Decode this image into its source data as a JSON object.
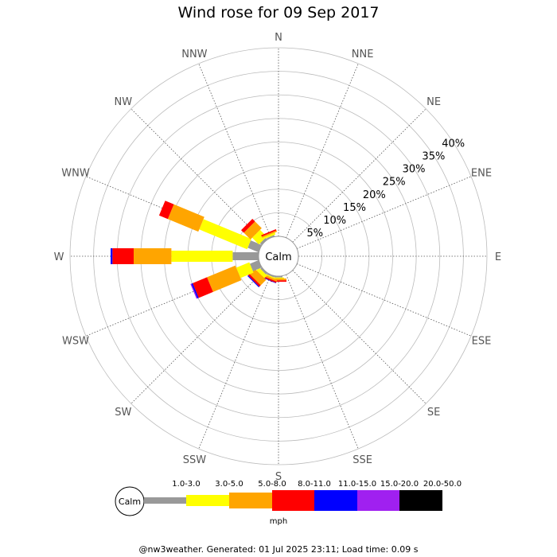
{
  "title": "Wind rose for 09 Sep 2017",
  "footer": "@nw3weather. Generated: 01 Jul 2025 23:11; Load time: 0.09 s",
  "chart_data": {
    "type": "wind-rose",
    "title": "Wind rose for 09 Sep 2017",
    "center_label": "Calm",
    "directions": [
      "N",
      "NNE",
      "NE",
      "ENE",
      "E",
      "ESE",
      "SE",
      "SSE",
      "S",
      "SSW",
      "SW",
      "WSW",
      "W",
      "WNW",
      "NW",
      "NNW"
    ],
    "radial_ticks": [
      "5%",
      "10%",
      "15%",
      "20%",
      "25%",
      "30%",
      "35%",
      "40%"
    ],
    "radial_max": 40,
    "unit": "mph",
    "speed_bins": [
      {
        "label": "1.0-3.0",
        "color": "#999999"
      },
      {
        "label": "3.0-5.0",
        "color": "#ffff00"
      },
      {
        "label": "5.0-8.0",
        "color": "#ffa500"
      },
      {
        "label": "8.0-11.0",
        "color": "#ff0000"
      },
      {
        "label": "11.0-15.0",
        "color": "#0000ff"
      },
      {
        "label": "15.0-20.0",
        "color": "#a020f0"
      },
      {
        "label": "20.0-50.0",
        "color": "#000000"
      }
    ],
    "series": [
      {
        "direction": "N",
        "values": [
          0,
          0,
          0,
          0,
          0,
          0,
          0
        ]
      },
      {
        "direction": "NNE",
        "values": [
          0,
          0,
          0,
          0,
          0,
          0,
          0
        ]
      },
      {
        "direction": "NE",
        "values": [
          0,
          0,
          0,
          0,
          0,
          0,
          0
        ]
      },
      {
        "direction": "ENE",
        "values": [
          0,
          0,
          0,
          0,
          0,
          0,
          0
        ]
      },
      {
        "direction": "E",
        "values": [
          0,
          0,
          0,
          0,
          0,
          0,
          0
        ]
      },
      {
        "direction": "ESE",
        "values": [
          0,
          0,
          0,
          0,
          0,
          0,
          0
        ]
      },
      {
        "direction": "SE",
        "values": [
          0,
          0,
          0,
          0,
          0,
          0,
          0
        ]
      },
      {
        "direction": "SSE",
        "values": [
          0,
          0,
          0,
          0,
          0,
          0,
          0
        ]
      },
      {
        "direction": "S",
        "values": [
          0.3,
          0.2,
          0.4,
          0.3,
          0,
          0,
          0
        ]
      },
      {
        "direction": "SSW",
        "values": [
          0.3,
          0.2,
          0.4,
          0.3,
          0.1,
          0,
          0
        ]
      },
      {
        "direction": "SW",
        "values": [
          0.4,
          0.8,
          1.6,
          0.4,
          0.2,
          0,
          0
        ]
      },
      {
        "direction": "WSW",
        "values": [
          2.0,
          3.0,
          6.5,
          3.3,
          0.3,
          0.2,
          0
        ]
      },
      {
        "direction": "W",
        "values": [
          5.5,
          13.0,
          8.0,
          4.5,
          0.4,
          0,
          0
        ]
      },
      {
        "direction": "WNW",
        "values": [
          2.5,
          11.0,
          7.0,
          2.0,
          0,
          0,
          0
        ]
      },
      {
        "direction": "NW",
        "values": [
          0.5,
          2.0,
          2.0,
          0.8,
          0,
          0,
          0
        ]
      },
      {
        "direction": "NNW",
        "values": [
          0.3,
          0.4,
          0.3,
          0.3,
          0,
          0,
          0
        ]
      }
    ]
  }
}
